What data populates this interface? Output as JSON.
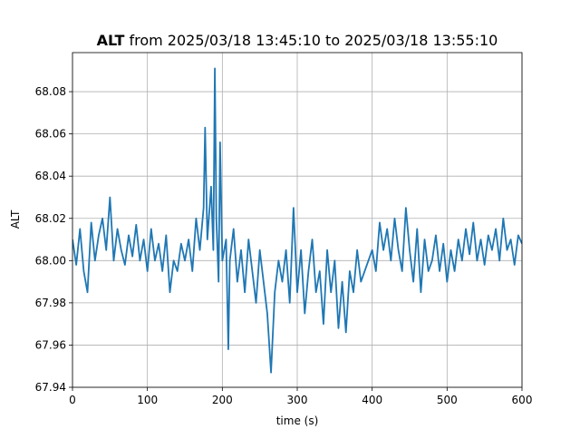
{
  "chart_data": {
    "type": "line",
    "title_variable": "ALT",
    "title_range": "from 2025/03/18 13:45:10 to 2025/03/18 13:55:10",
    "xlabel": "time (s)",
    "ylabel": "ALT",
    "xlim": [
      0,
      600
    ],
    "xticks": [
      0,
      100,
      200,
      300,
      400,
      500,
      600
    ],
    "ylim": [
      67.94,
      68.0985
    ],
    "yticks": [
      67.94,
      67.96,
      67.98,
      {
        "value": 68,
        "label": "68.00"
      },
      68.02,
      68.04,
      68.06,
      68.08
    ],
    "grid": true,
    "series": [
      {
        "color": "#1f77b4",
        "x": [
          0,
          5,
          10,
          15,
          20,
          25,
          30,
          35,
          40,
          45,
          50,
          55,
          60,
          65,
          70,
          75,
          80,
          85,
          90,
          95,
          100,
          105,
          110,
          115,
          120,
          125,
          130,
          135,
          140,
          145,
          150,
          155,
          160,
          165,
          170,
          175,
          177,
          180,
          185,
          188,
          190,
          192,
          195,
          197,
          200,
          205,
          208,
          210,
          215,
          220,
          225,
          230,
          235,
          240,
          245,
          250,
          255,
          260,
          265,
          270,
          275,
          280,
          285,
          290,
          295,
          300,
          305,
          310,
          315,
          320,
          325,
          330,
          335,
          340,
          345,
          350,
          355,
          360,
          365,
          370,
          375,
          380,
          385,
          390,
          395,
          400,
          405,
          410,
          415,
          420,
          425,
          430,
          435,
          440,
          445,
          450,
          455,
          460,
          465,
          470,
          475,
          480,
          485,
          490,
          495,
          500,
          505,
          510,
          515,
          520,
          525,
          530,
          535,
          540,
          545,
          550,
          555,
          560,
          565,
          570,
          575,
          580,
          585,
          590,
          595,
          600
        ],
        "values": [
          68.01,
          67.998,
          68.015,
          67.995,
          67.985,
          68.018,
          68.0,
          68.012,
          68.02,
          68.005,
          68.03,
          68.0,
          68.015,
          68.005,
          67.998,
          68.012,
          68.002,
          68.017,
          68.0,
          68.01,
          67.995,
          68.015,
          68.0,
          68.008,
          67.995,
          68.012,
          67.985,
          68.0,
          67.995,
          68.008,
          68.0,
          68.01,
          67.995,
          68.02,
          68.005,
          68.025,
          68.063,
          68.01,
          68.035,
          68.005,
          68.091,
          68.02,
          67.99,
          68.056,
          68.0,
          68.01,
          67.958,
          68.0,
          68.015,
          67.99,
          68.005,
          67.985,
          68.01,
          67.995,
          67.98,
          68.005,
          67.99,
          67.975,
          67.947,
          67.985,
          68.0,
          67.99,
          68.005,
          67.98,
          68.025,
          67.985,
          68.005,
          67.975,
          67.995,
          68.01,
          67.985,
          67.995,
          67.97,
          68.005,
          67.985,
          68.0,
          67.968,
          67.99,
          67.966,
          67.995,
          67.985,
          68.005,
          67.99,
          67.995,
          68.0,
          68.005,
          67.995,
          68.018,
          68.005,
          68.015,
          68.0,
          68.02,
          68.005,
          67.995,
          68.025,
          68.005,
          67.99,
          68.015,
          67.985,
          68.01,
          67.995,
          68.0,
          68.012,
          67.995,
          68.008,
          67.99,
          68.005,
          67.995,
          68.01,
          68.0,
          68.015,
          68.003,
          68.018,
          68.0,
          68.01,
          67.998,
          68.012,
          68.005,
          68.015,
          68.0,
          68.02,
          68.005,
          68.01,
          67.998,
          68.012,
          68.008
        ]
      }
    ]
  }
}
